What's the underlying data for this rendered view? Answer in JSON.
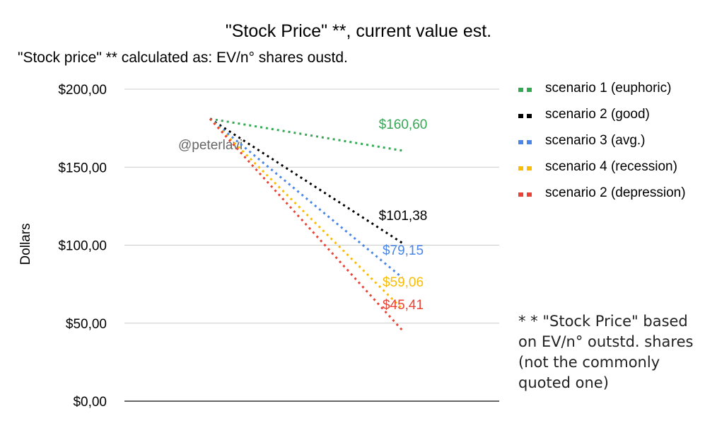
{
  "chart_data": {
    "type": "line",
    "title": "\"Stock Price\" **, current value est.",
    "subtitle": "\"Stock price\" ** calculated as: EV/n° shares oustd.",
    "xlabel": "",
    "ylabel": "Dollars",
    "ylim": [
      0,
      200
    ],
    "y_ticks": [
      0,
      50,
      100,
      150,
      200
    ],
    "y_tick_labels": [
      "$0,00",
      "$50,00",
      "$100,00",
      "$150,00",
      "$200,00"
    ],
    "grid": true,
    "legend_position": "right",
    "x": [
      0,
      1
    ],
    "series": [
      {
        "name": "scenario 1 (euphoric)",
        "color": "#34a853",
        "values": [
          181,
          160.6
        ],
        "end_label": "$160,60"
      },
      {
        "name": "scenario 2 (good)",
        "color": "#000000",
        "values": [
          181,
          101.38
        ],
        "end_label": "$101,38"
      },
      {
        "name": "scenario 3 (avg.)",
        "color": "#4a86e8",
        "values": [
          181,
          79.15
        ],
        "end_label": "$79,15"
      },
      {
        "name": "scenario 4 (recession)",
        "color": "#fbbc04",
        "values": [
          181,
          59.06
        ],
        "end_label": "$59,06"
      },
      {
        "name": "scenario 2 (depression)",
        "color": "#ea4335",
        "values": [
          181,
          45.41
        ],
        "end_label": "$45,41"
      }
    ],
    "watermark": "@peterlavi"
  },
  "footnote": "* * \"Stock Price\" based on EV/n° outstd. shares (not the commonly quoted one)"
}
